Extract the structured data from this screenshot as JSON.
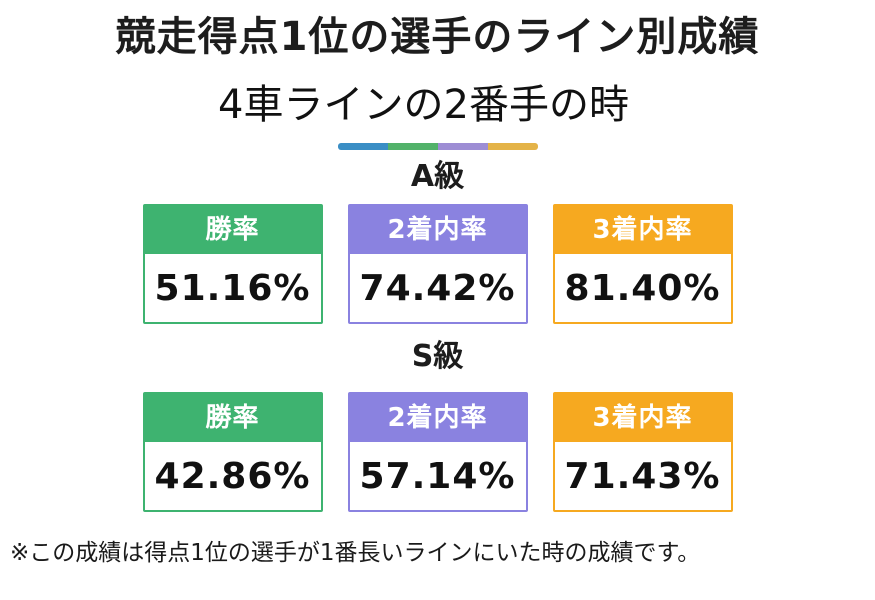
{
  "header": {
    "title": "競走得点1位の選手のライン別成績",
    "subtitle": "4車ラインの2番手の時"
  },
  "divider_colors": [
    "#3a8ec5",
    "#52b26a",
    "#9d8dd4",
    "#e4b348"
  ],
  "sections": [
    {
      "label": "A級",
      "stats": [
        {
          "label": "勝率",
          "value": "51.16%",
          "color": "#3eb370"
        },
        {
          "label": "2着内率",
          "value": "74.42%",
          "color": "#8a82e0"
        },
        {
          "label": "3着内率",
          "value": "81.40%",
          "color": "#f6a920"
        }
      ]
    },
    {
      "label": "S級",
      "stats": [
        {
          "label": "勝率",
          "value": "42.86%",
          "color": "#3eb370"
        },
        {
          "label": "2着内率",
          "value": "57.14%",
          "color": "#8a82e0"
        },
        {
          "label": "3着内率",
          "value": "71.43%",
          "color": "#f6a920"
        }
      ]
    }
  ],
  "footnote": "※この成績は得点1位の選手が1番長いラインにいた時の成績です。",
  "chart_data": {
    "type": "table",
    "title": "競走得点1位の選手のライン別成績",
    "subtitle": "4車ラインの2番手の時",
    "columns": [
      "勝率",
      "2着内率",
      "3着内率"
    ],
    "rows": [
      {
        "group": "A級",
        "values": [
          51.16,
          74.42,
          81.4
        ]
      },
      {
        "group": "S級",
        "values": [
          42.86,
          57.14,
          71.43
        ]
      }
    ],
    "unit": "%",
    "column_colors": [
      "#3eb370",
      "#8a82e0",
      "#f6a920"
    ]
  }
}
